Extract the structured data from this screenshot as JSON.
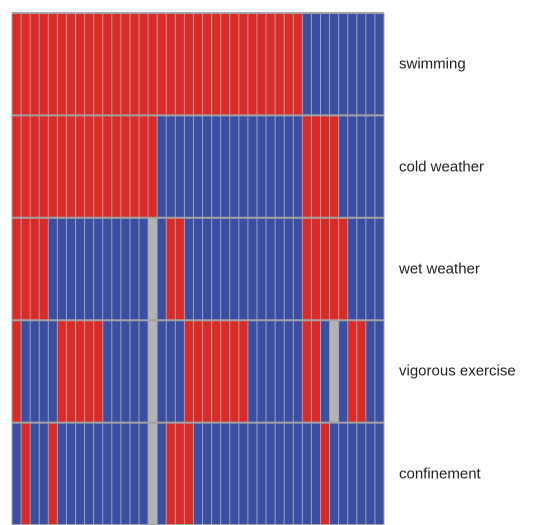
{
  "colors": {
    "category_1": "#dd2a26",
    "category_0": "#3a4ea5",
    "missing": "#b3b3b3",
    "grid": "#a3a3a3"
  },
  "chart_data": {
    "type": "heatmap",
    "title": "",
    "xlabel": "",
    "ylabel": "",
    "grid": true,
    "n_columns": 41,
    "value_legend": {
      "1": "category_1",
      "0": "category_0",
      "null": "missing"
    },
    "rows": [
      {
        "label": "swimming",
        "values": [
          1,
          1,
          1,
          1,
          1,
          1,
          1,
          1,
          1,
          1,
          1,
          1,
          1,
          1,
          1,
          1,
          1,
          1,
          1,
          1,
          1,
          1,
          1,
          1,
          1,
          1,
          1,
          1,
          1,
          1,
          1,
          1,
          0,
          0,
          0,
          0,
          0,
          0,
          0,
          0,
          0
        ]
      },
      {
        "label": "cold weather",
        "values": [
          1,
          1,
          1,
          1,
          1,
          1,
          1,
          1,
          1,
          1,
          1,
          1,
          1,
          1,
          1,
          1,
          0,
          0,
          0,
          0,
          0,
          0,
          0,
          0,
          0,
          0,
          0,
          0,
          0,
          0,
          0,
          0,
          1,
          1,
          1,
          1,
          0,
          0,
          0,
          0,
          0
        ]
      },
      {
        "label": "wet weather",
        "values": [
          1,
          1,
          1,
          1,
          0,
          0,
          0,
          0,
          0,
          0,
          0,
          0,
          0,
          0,
          0,
          null,
          0,
          1,
          1,
          0,
          0,
          0,
          0,
          0,
          0,
          0,
          0,
          0,
          0,
          0,
          0,
          0,
          1,
          1,
          1,
          1,
          1,
          0,
          0,
          0,
          0
        ]
      },
      {
        "label": "vigorous exercise",
        "values": [
          1,
          0,
          0,
          0,
          0,
          1,
          1,
          1,
          1,
          1,
          0,
          0,
          0,
          0,
          0,
          null,
          0,
          0,
          0,
          1,
          1,
          1,
          1,
          1,
          1,
          1,
          0,
          0,
          0,
          0,
          0,
          0,
          1,
          1,
          0,
          null,
          0,
          1,
          1,
          0,
          0
        ]
      },
      {
        "label": "confinement",
        "values": [
          0,
          1,
          0,
          0,
          1,
          0,
          0,
          0,
          0,
          0,
          0,
          0,
          0,
          0,
          0,
          null,
          0,
          1,
          1,
          1,
          0,
          0,
          0,
          0,
          0,
          0,
          0,
          0,
          0,
          0,
          0,
          0,
          0,
          0,
          1,
          0,
          0,
          0,
          0,
          0,
          0
        ]
      }
    ]
  }
}
